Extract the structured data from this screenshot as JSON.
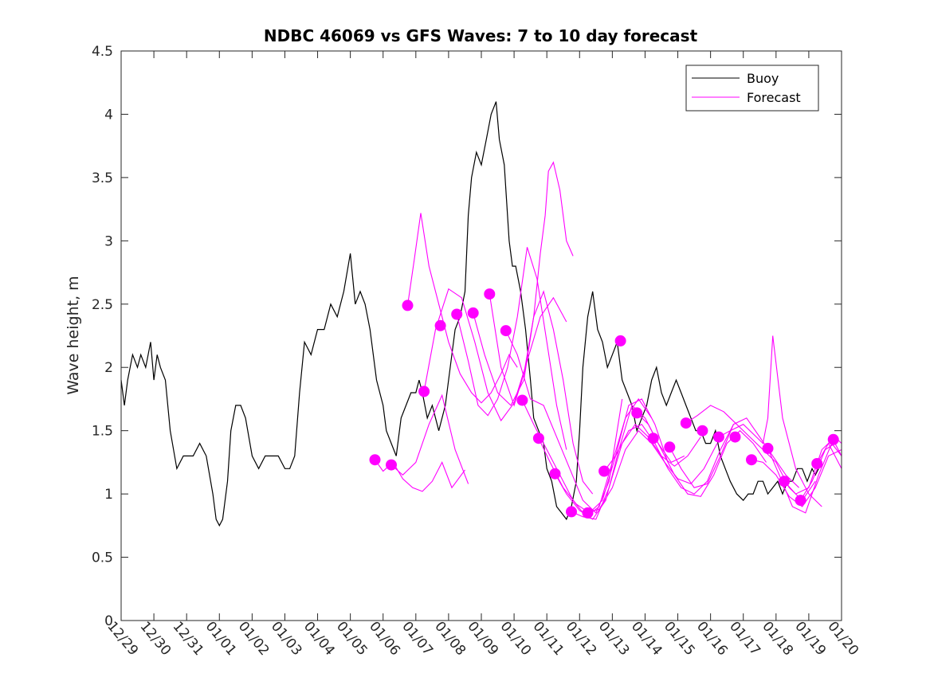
{
  "chart_data": {
    "type": "line",
    "title": "NDBC 46069 vs GFS Waves: 7 to 10 day forecast",
    "xlabel": "",
    "ylabel": "Wave height, m",
    "xlim": [
      0,
      22
    ],
    "ylim": [
      0,
      4.5
    ],
    "xticks": [
      0,
      1,
      2,
      3,
      4,
      5,
      6,
      7,
      8,
      9,
      10,
      11,
      12,
      13,
      14,
      15,
      16,
      17,
      18,
      19,
      20,
      21,
      22
    ],
    "xtick_labels": [
      "12/29",
      "12/30",
      "12/31",
      "01/01",
      "01/02",
      "01/03",
      "01/04",
      "01/05",
      "01/06",
      "01/07",
      "01/08",
      "01/09",
      "01/10",
      "01/11",
      "01/12",
      "01/13",
      "01/14",
      "01/15",
      "01/16",
      "01/17",
      "01/18",
      "01/19",
      "01/20"
    ],
    "yticks": [
      0,
      0.5,
      1,
      1.5,
      2,
      2.5,
      3,
      3.5,
      4,
      4.5
    ],
    "ytick_labels": [
      "0",
      "0.5",
      "1",
      "1.5",
      "2",
      "2.5",
      "3",
      "3.5",
      "4",
      "4.5"
    ],
    "legend": {
      "position": "top-right",
      "entries": [
        "Buoy",
        "Forecast"
      ]
    },
    "colors": {
      "buoy": "#000000",
      "forecast": "#ff00ff"
    },
    "buoy": {
      "name": "Buoy",
      "x": [
        0,
        0.1,
        0.2,
        0.35,
        0.5,
        0.6,
        0.75,
        0.9,
        1.0,
        1.1,
        1.2,
        1.35,
        1.5,
        1.7,
        1.9,
        2.0,
        2.2,
        2.4,
        2.6,
        2.8,
        2.9,
        3.0,
        3.1,
        3.25,
        3.35,
        3.5,
        3.65,
        3.8,
        4.0,
        4.2,
        4.4,
        4.6,
        4.8,
        5.0,
        5.15,
        5.3,
        5.45,
        5.6,
        5.8,
        6.0,
        6.2,
        6.4,
        6.6,
        6.8,
        7.0,
        7.15,
        7.3,
        7.45,
        7.6,
        7.8,
        8.0,
        8.1,
        8.25,
        8.4,
        8.55,
        8.7,
        8.85,
        9.0,
        9.1,
        9.2,
        9.35,
        9.5,
        9.7,
        9.9,
        10.0,
        10.2,
        10.35,
        10.5,
        10.6,
        10.7,
        10.85,
        11.0,
        11.15,
        11.3,
        11.45,
        11.55,
        11.7,
        11.85,
        11.95,
        12.05,
        12.2,
        12.35,
        12.5,
        12.6,
        12.75,
        12.9,
        13.0,
        13.15,
        13.3,
        13.45,
        13.6,
        13.75,
        13.9,
        14.0,
        14.1,
        14.25,
        14.4,
        14.55,
        14.7,
        14.85,
        15.0,
        15.15,
        15.3,
        15.45,
        15.6,
        15.75,
        15.9,
        16.05,
        16.2,
        16.35,
        16.5,
        16.65,
        16.8,
        16.95,
        17.1,
        17.25,
        17.4,
        17.55,
        17.7,
        17.85,
        18.0,
        18.15,
        18.3,
        18.45,
        18.6,
        18.8,
        19.0,
        19.15,
        19.3,
        19.45,
        19.6,
        19.75,
        19.9,
        20.05,
        20.2,
        20.35,
        20.5,
        20.65,
        20.8,
        20.95,
        21.1,
        21.2,
        21.3
      ],
      "y": [
        1.9,
        1.7,
        1.9,
        2.1,
        2.0,
        2.1,
        2.0,
        2.2,
        1.9,
        2.1,
        2.0,
        1.9,
        1.5,
        1.2,
        1.3,
        1.3,
        1.3,
        1.4,
        1.3,
        1.0,
        0.8,
        0.75,
        0.8,
        1.1,
        1.5,
        1.7,
        1.7,
        1.6,
        1.3,
        1.2,
        1.3,
        1.3,
        1.3,
        1.2,
        1.2,
        1.3,
        1.8,
        2.2,
        2.1,
        2.3,
        2.3,
        2.5,
        2.4,
        2.6,
        2.9,
        2.5,
        2.6,
        2.5,
        2.3,
        1.9,
        1.7,
        1.5,
        1.4,
        1.3,
        1.6,
        1.7,
        1.8,
        1.8,
        1.9,
        1.8,
        1.6,
        1.7,
        1.5,
        1.7,
        1.9,
        2.3,
        2.4,
        2.6,
        3.2,
        3.5,
        3.7,
        3.6,
        3.8,
        4.0,
        4.1,
        3.8,
        3.6,
        3.0,
        2.8,
        2.8,
        2.6,
        2.3,
        1.9,
        1.6,
        1.5,
        1.4,
        1.2,
        1.1,
        0.9,
        0.85,
        0.8,
        0.9,
        1.1,
        1.5,
        2.0,
        2.4,
        2.6,
        2.3,
        2.2,
        2.0,
        2.1,
        2.2,
        1.9,
        1.8,
        1.7,
        1.5,
        1.6,
        1.7,
        1.9,
        2.0,
        1.8,
        1.7,
        1.8,
        1.9,
        1.8,
        1.7,
        1.6,
        1.5,
        1.5,
        1.4,
        1.4,
        1.5,
        1.3,
        1.2,
        1.1,
        1.0,
        0.95,
        1.0,
        1.0,
        1.1,
        1.1,
        1.0,
        1.05,
        1.1,
        1.0,
        1.1,
        1.1,
        1.2,
        1.2,
        1.1,
        1.2,
        1.15,
        1.2
      ]
    },
    "forecast_points": {
      "name": "Forecast",
      "x": [
        7.75,
        8.25,
        8.75,
        9.25,
        9.75,
        10.25,
        10.75,
        11.25,
        11.75,
        12.25,
        12.75,
        13.25,
        13.75,
        14.25,
        14.75,
        15.25,
        15.75,
        16.25,
        16.75,
        17.25,
        17.75,
        18.25,
        18.75,
        19.25,
        19.75,
        20.25,
        20.75,
        21.25,
        21.75
      ],
      "y": [
        1.27,
        1.23,
        2.49,
        1.81,
        2.33,
        2.42,
        2.43,
        2.58,
        2.29,
        1.74,
        1.44,
        1.16,
        0.86,
        0.85,
        1.18,
        2.21,
        1.64,
        1.44,
        1.37,
        1.56,
        1.5,
        1.45,
        1.45,
        1.27,
        1.36,
        1.1,
        0.95,
        1.24,
        1.43
      ]
    },
    "forecast_traces": [
      {
        "x": [
          7.75,
          8.0,
          8.3,
          8.6,
          8.9,
          9.2,
          9.5,
          9.8,
          10.1,
          10.5
        ],
        "y": [
          1.27,
          1.18,
          1.25,
          1.12,
          1.05,
          1.02,
          1.1,
          1.25,
          1.05,
          1.19
        ]
      },
      {
        "x": [
          8.25,
          8.6,
          9.0,
          9.4,
          9.8,
          10.2,
          10.6
        ],
        "y": [
          1.23,
          1.15,
          1.25,
          1.55,
          1.78,
          1.35,
          1.08
        ]
      },
      {
        "x": [
          8.75,
          8.95,
          9.15,
          9.4,
          9.7,
          10.0,
          10.35,
          10.7,
          11.0,
          11.3,
          11.6,
          11.85,
          12.1
        ],
        "y": [
          2.49,
          2.85,
          3.22,
          2.8,
          2.5,
          2.2,
          1.95,
          1.8,
          1.72,
          1.8,
          1.95,
          2.1,
          2.0
        ]
      },
      {
        "x": [
          9.25,
          9.6,
          10.0,
          10.4,
          10.8,
          11.2,
          11.6,
          12.0,
          12.4,
          12.8,
          13.2,
          13.6
        ],
        "y": [
          1.81,
          2.3,
          2.62,
          2.55,
          2.2,
          1.8,
          1.58,
          1.72,
          2.05,
          2.4,
          2.55,
          2.36
        ]
      },
      {
        "x": [
          10.25,
          10.6,
          10.9,
          11.2,
          11.5,
          11.8,
          12.1,
          12.4,
          12.7,
          13.0,
          13.3,
          13.6
        ],
        "y": [
          2.42,
          2.05,
          1.7,
          1.62,
          1.75,
          2.0,
          2.4,
          2.95,
          2.7,
          2.2,
          1.7,
          1.35
        ]
      },
      {
        "x": [
          10.75,
          11.1,
          11.5,
          11.9,
          12.3,
          12.6,
          12.9,
          13.2,
          13.5,
          13.8,
          14.1,
          14.4
        ],
        "y": [
          2.43,
          2.1,
          1.8,
          1.7,
          1.9,
          2.4,
          2.6,
          2.3,
          1.9,
          1.4,
          1.1,
          1.0
        ]
      },
      {
        "x": [
          11.25,
          11.6,
          12.0,
          12.3,
          12.6,
          12.8,
          12.95,
          13.05,
          13.2,
          13.4,
          13.6,
          13.8
        ],
        "y": [
          2.58,
          2.0,
          1.7,
          1.95,
          2.4,
          2.9,
          3.2,
          3.55,
          3.62,
          3.4,
          3.0,
          2.88
        ]
      },
      {
        "x": [
          11.75,
          12.1,
          12.5,
          12.9,
          13.3,
          13.7,
          14.1,
          14.5,
          14.9,
          15.3
        ],
        "y": [
          2.29,
          2.1,
          1.75,
          1.7,
          1.45,
          1.2,
          0.95,
          0.85,
          1.1,
          1.75
        ]
      },
      {
        "x": [
          12.25,
          12.6,
          13.0,
          13.4,
          13.8,
          14.2,
          14.6,
          15.0,
          15.4,
          15.8,
          16.2
        ],
        "y": [
          1.74,
          1.55,
          1.35,
          1.15,
          0.95,
          0.82,
          0.9,
          1.25,
          1.6,
          1.75,
          1.6
        ]
      },
      {
        "x": [
          12.75,
          13.1,
          13.5,
          13.9,
          14.3,
          14.7,
          15.1,
          15.5,
          15.9,
          16.3,
          16.7
        ],
        "y": [
          1.44,
          1.25,
          1.05,
          0.92,
          0.85,
          0.95,
          1.3,
          1.7,
          1.75,
          1.55,
          1.25
        ]
      },
      {
        "x": [
          13.25,
          13.6,
          14.0,
          14.4,
          14.8,
          15.2,
          15.6,
          16.0,
          16.4,
          16.8,
          17.2
        ],
        "y": [
          1.16,
          1.0,
          0.87,
          0.8,
          0.95,
          1.35,
          1.7,
          1.6,
          1.4,
          1.25,
          1.3
        ]
      },
      {
        "x": [
          13.75,
          14.1,
          14.5,
          14.9,
          15.3,
          15.7,
          16.1,
          16.5,
          16.9,
          17.3,
          17.7
        ],
        "y": [
          0.86,
          0.82,
          0.8,
          1.05,
          1.4,
          1.55,
          1.45,
          1.3,
          1.22,
          1.3,
          1.45
        ]
      },
      {
        "x": [
          14.25,
          14.6,
          15.0,
          15.4,
          15.8,
          16.2,
          16.6,
          17.0,
          17.4,
          17.8,
          18.2
        ],
        "y": [
          0.85,
          0.88,
          1.05,
          1.35,
          1.5,
          1.4,
          1.25,
          1.12,
          1.08,
          1.2,
          1.4
        ]
      },
      {
        "x": [
          14.75,
          15.1,
          15.5,
          15.9,
          16.3,
          16.7,
          17.1,
          17.5,
          17.9,
          18.3,
          18.7
        ],
        "y": [
          1.18,
          1.3,
          1.5,
          1.55,
          1.4,
          1.2,
          1.05,
          1.0,
          1.1,
          1.35,
          1.55
        ]
      },
      {
        "x": [
          15.75,
          16.1,
          16.5,
          16.9,
          17.3,
          17.7,
          18.1,
          18.5,
          18.9,
          19.3,
          19.7
        ],
        "y": [
          1.64,
          1.55,
          1.35,
          1.15,
          1.0,
          0.98,
          1.15,
          1.4,
          1.5,
          1.4,
          1.25
        ]
      },
      {
        "x": [
          16.75,
          17.1,
          17.5,
          17.9,
          18.3,
          18.7,
          19.1,
          19.5,
          19.9,
          20.3,
          20.7
        ],
        "y": [
          1.37,
          1.2,
          1.05,
          1.08,
          1.3,
          1.55,
          1.6,
          1.45,
          1.3,
          1.15,
          1.05
        ]
      },
      {
        "x": [
          17.25,
          17.6,
          18.0,
          18.4,
          18.8,
          19.2,
          19.6,
          20.0,
          20.4,
          20.8,
          21.2
        ],
        "y": [
          1.56,
          1.62,
          1.7,
          1.65,
          1.55,
          1.45,
          1.35,
          1.25,
          1.05,
          0.95,
          1.1
        ]
      },
      {
        "x": [
          18.25,
          18.6,
          19.0,
          19.4,
          19.6,
          19.75,
          19.9,
          20.2,
          20.6,
          21.0,
          21.4
        ],
        "y": [
          1.45,
          1.5,
          1.55,
          1.45,
          1.4,
          1.6,
          2.25,
          1.6,
          1.2,
          1.0,
          0.9
        ]
      },
      {
        "x": [
          19.25,
          19.6,
          20.0,
          20.4,
          20.8,
          21.2,
          21.6,
          22.0
        ],
        "y": [
          1.27,
          1.25,
          1.15,
          0.98,
          0.9,
          1.05,
          1.3,
          1.35
        ]
      },
      {
        "x": [
          19.75,
          20.1,
          20.5,
          20.9,
          21.3,
          21.7,
          22.0
        ],
        "y": [
          1.36,
          1.15,
          0.9,
          0.85,
          1.15,
          1.4,
          1.3
        ]
      },
      {
        "x": [
          20.25,
          20.6,
          21.0,
          21.4,
          21.8,
          22.0
        ],
        "y": [
          1.1,
          1.0,
          1.05,
          1.35,
          1.45,
          1.4
        ]
      },
      {
        "x": [
          20.75,
          21.1,
          21.5,
          21.8,
          22.0
        ],
        "y": [
          0.95,
          1.1,
          1.35,
          1.4,
          1.3
        ]
      },
      {
        "x": [
          21.25,
          21.6,
          22.0
        ],
        "y": [
          1.24,
          1.4,
          1.2
        ]
      }
    ]
  }
}
